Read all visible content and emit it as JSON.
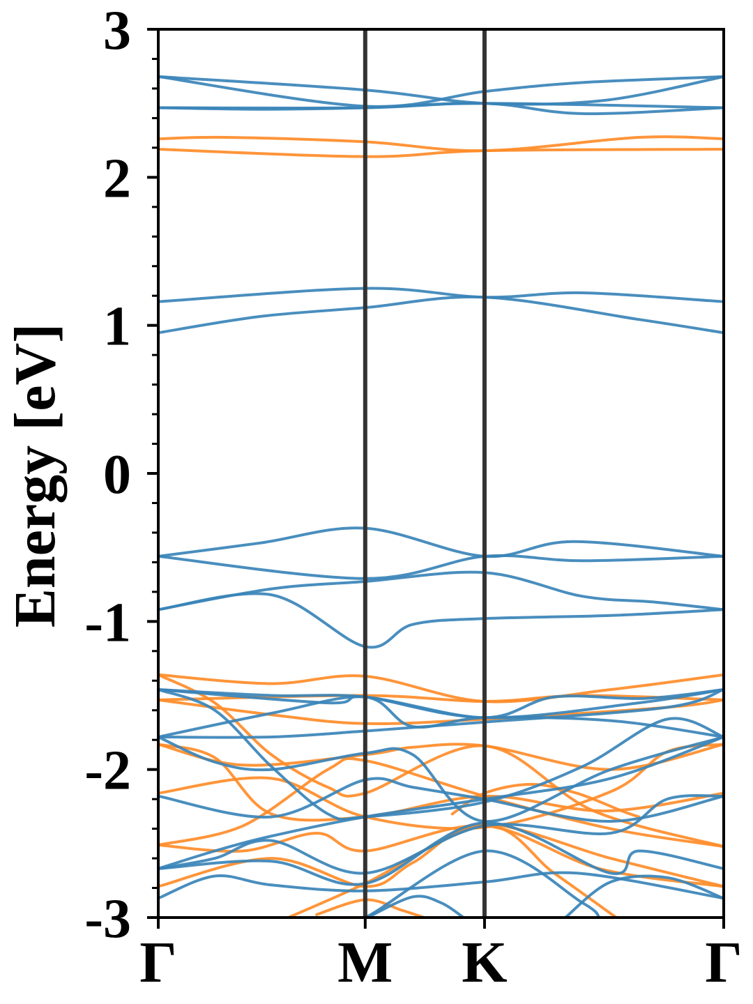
{
  "chart_data": {
    "type": "line",
    "title": "",
    "xlabel": "",
    "ylabel": "Energy [eV]",
    "ylim": [
      -3,
      3
    ],
    "xlim": [
      0,
      1
    ],
    "y_ticks": [
      "-3",
      "-2",
      "-1",
      "0",
      "1",
      "2",
      "3"
    ],
    "y_tick_values": [
      -3,
      -2,
      -1,
      0,
      1,
      2,
      3
    ],
    "y_minor_step": 0.2,
    "high_symmetry_points": [
      {
        "label": "Γ",
        "x": 0.0
      },
      {
        "label": "M",
        "x": 0.366
      },
      {
        "label": "K",
        "x": 0.577
      },
      {
        "label": "Γ",
        "x": 1.0
      }
    ],
    "grid": false,
    "legend": "none",
    "colors": {
      "spin_blue": "#3a84b8",
      "spin_orange": "#ff8c29",
      "kpath_line": "#333333"
    },
    "series": [
      {
        "color": "blue",
        "x": [
          0,
          0.366,
          0.577,
          0.79,
          1
        ],
        "y": [
          2.68,
          2.59,
          2.5,
          2.52,
          2.68
        ]
      },
      {
        "color": "blue",
        "x": [
          0,
          0.366,
          0.577,
          0.75,
          1
        ],
        "y": [
          2.68,
          2.48,
          2.58,
          2.64,
          2.68
        ]
      },
      {
        "color": "blue",
        "x": [
          0,
          0.366,
          0.577,
          1
        ],
        "y": [
          2.47,
          2.47,
          2.5,
          2.47
        ]
      },
      {
        "color": "blue",
        "x": [
          0,
          0.18,
          0.366,
          0.577,
          0.75,
          1
        ],
        "y": [
          2.47,
          2.46,
          2.47,
          2.5,
          2.43,
          2.47
        ]
      },
      {
        "color": "orange",
        "x": [
          0,
          0.12,
          0.366,
          0.577,
          0.85,
          1
        ],
        "y": [
          2.26,
          2.27,
          2.24,
          2.18,
          2.27,
          2.26
        ]
      },
      {
        "color": "orange",
        "x": [
          0,
          0.366,
          0.577,
          1
        ],
        "y": [
          2.19,
          2.14,
          2.18,
          2.19
        ]
      },
      {
        "color": "blue",
        "x": [
          0,
          0.366,
          0.577,
          0.75,
          1
        ],
        "y": [
          1.16,
          1.25,
          1.19,
          1.22,
          1.16
        ]
      },
      {
        "color": "blue",
        "x": [
          0,
          0.18,
          0.366,
          0.577,
          0.85,
          1
        ],
        "y": [
          0.95,
          1.06,
          1.12,
          1.19,
          1.04,
          0.95
        ]
      },
      {
        "color": "blue",
        "x": [
          0,
          0.18,
          0.366,
          0.577,
          0.735,
          1
        ],
        "y": [
          -0.56,
          -0.47,
          -0.37,
          -0.56,
          -0.46,
          -0.56
        ]
      },
      {
        "color": "blue",
        "x": [
          0,
          0.366,
          0.577,
          0.75,
          1
        ],
        "y": [
          -0.56,
          -0.71,
          -0.56,
          -0.59,
          -0.56
        ]
      },
      {
        "color": "blue",
        "x": [
          0,
          0.2,
          0.366,
          0.577,
          0.75,
          0.88,
          1
        ],
        "y": [
          -0.92,
          -0.78,
          -0.73,
          -0.67,
          -0.83,
          -0.87,
          -0.92
        ]
      },
      {
        "color": "blue",
        "x": [
          0,
          0.2,
          0.366,
          0.45,
          0.577,
          0.8,
          1
        ],
        "y": [
          -0.92,
          -0.82,
          -1.17,
          -1.02,
          -0.98,
          -0.96,
          -0.92
        ]
      },
      {
        "color": "orange",
        "x": [
          0,
          0.2,
          0.366,
          0.577,
          0.8,
          1
        ],
        "y": [
          -1.36,
          -1.42,
          -1.37,
          -1.54,
          -1.46,
          -1.36
        ]
      },
      {
        "color": "orange",
        "x": [
          0,
          0.366,
          0.577,
          0.75,
          1
        ],
        "y": [
          -1.53,
          -1.5,
          -1.54,
          -1.5,
          -1.53
        ]
      },
      {
        "color": "orange",
        "x": [
          0,
          0.2,
          0.366,
          0.577,
          0.9,
          1
        ],
        "y": [
          -1.53,
          -1.63,
          -1.69,
          -1.66,
          -1.58,
          -1.53
        ]
      },
      {
        "color": "orange",
        "x": [
          0,
          0.1,
          0.2,
          0.3,
          0.366,
          0.577,
          0.77,
          1
        ],
        "y": [
          -1.36,
          -1.55,
          -1.9,
          -2.12,
          -2.16,
          -1.84,
          -2.28,
          -2.52
        ]
      },
      {
        "color": "orange",
        "x": [
          0,
          0.15,
          0.366,
          0.45,
          0.577,
          0.8,
          1
        ],
        "y": [
          -1.83,
          -1.97,
          -1.9,
          -1.85,
          -1.84,
          -2.0,
          -1.83
        ]
      },
      {
        "color": "orange",
        "x": [
          0,
          0.2,
          0.366,
          0.577,
          0.8,
          0.9,
          1
        ],
        "y": [
          -2.16,
          -2.06,
          -2.32,
          -2.39,
          -2.15,
          -1.88,
          -1.83
        ]
      },
      {
        "color": "orange",
        "x": [
          0,
          0.1,
          0.2,
          0.366,
          0.577,
          0.79,
          1
        ],
        "y": [
          -1.83,
          -1.92,
          -2.3,
          -2.32,
          -2.18,
          -2.28,
          -2.16
        ]
      },
      {
        "color": "orange",
        "x": [
          0,
          0.15,
          0.3,
          0.366,
          0.577,
          0.8,
          1
        ],
        "y": [
          -2.51,
          -2.38,
          -2.0,
          -1.94,
          -2.18,
          -2.4,
          -2.52
        ]
      },
      {
        "color": "orange",
        "x": [
          0,
          0.15,
          0.28,
          0.366,
          0.577,
          0.78,
          1
        ],
        "y": [
          -2.51,
          -2.55,
          -2.43,
          -2.55,
          -2.38,
          -2.67,
          -2.79
        ]
      },
      {
        "color": "orange",
        "x": [
          0,
          0.2,
          0.366,
          0.45,
          0.577,
          0.8,
          1
        ],
        "y": [
          -2.79,
          -2.6,
          -2.79,
          -2.63,
          -2.37,
          -2.6,
          -2.79
        ]
      },
      {
        "color": "orange",
        "x": [
          0.23,
          0.366,
          0.577,
          0.7,
          0.81
        ],
        "y": [
          -3.0,
          -2.77,
          -2.38,
          -2.7,
          -3.0
        ]
      },
      {
        "color": "orange",
        "x": [
          0.28,
          0.366,
          0.43,
          0.47
        ],
        "y": [
          -2.98,
          -2.88,
          -2.95,
          -3.0
        ]
      },
      {
        "color": "orange",
        "x": [
          0.52,
          0.577,
          0.66,
          0.74,
          0.82,
          0.85
        ],
        "y": [
          -2.3,
          -2.16,
          -2.1,
          -2.16,
          -2.28,
          -2.32
        ]
      },
      {
        "color": "blue",
        "x": [
          0,
          0.3,
          0.366,
          0.577,
          0.85,
          1
        ],
        "y": [
          -1.46,
          -1.55,
          -1.51,
          -1.65,
          -1.55,
          -1.46
        ]
      },
      {
        "color": "blue",
        "x": [
          0,
          0.2,
          0.366,
          0.577,
          0.7,
          0.86,
          1
        ],
        "y": [
          -1.46,
          -1.5,
          -1.51,
          -1.65,
          -1.51,
          -1.52,
          -1.46
        ]
      },
      {
        "color": "blue",
        "x": [
          0,
          0.2,
          0.366,
          0.45,
          0.577,
          0.8,
          1
        ],
        "y": [
          -1.78,
          -1.62,
          -1.51,
          -1.71,
          -1.65,
          -1.67,
          -1.78
        ]
      },
      {
        "color": "blue",
        "x": [
          0,
          0.2,
          0.366,
          0.577,
          0.9,
          1
        ],
        "y": [
          -1.78,
          -1.78,
          -1.74,
          -1.68,
          -1.58,
          -1.46
        ]
      },
      {
        "color": "blue",
        "x": [
          0,
          0.1,
          0.2,
          0.3,
          0.366,
          0.577,
          0.75,
          0.9,
          1
        ],
        "y": [
          -1.46,
          -1.6,
          -1.98,
          -2.3,
          -2.32,
          -2.22,
          -1.98,
          -1.66,
          -1.78
        ]
      },
      {
        "color": "blue",
        "x": [
          0,
          0.1,
          0.2,
          0.366,
          0.45,
          0.577,
          0.8,
          1
        ],
        "y": [
          -1.78,
          -1.95,
          -2.0,
          -1.89,
          -1.9,
          -2.35,
          -2.0,
          -1.78
        ]
      },
      {
        "color": "blue",
        "x": [
          0,
          0.2,
          0.366,
          0.45,
          0.577,
          0.8,
          1
        ],
        "y": [
          -2.18,
          -2.32,
          -2.07,
          -2.12,
          -2.2,
          -2.35,
          -2.18
        ]
      },
      {
        "color": "blue",
        "x": [
          0,
          0.1,
          0.2,
          0.366,
          0.577,
          0.8,
          1
        ],
        "y": [
          -2.67,
          -2.55,
          -2.45,
          -2.32,
          -2.2,
          -2.06,
          -1.78
        ]
      },
      {
        "color": "blue",
        "x": [
          0,
          0.1,
          0.2,
          0.366,
          0.577,
          0.8,
          0.9,
          1
        ],
        "y": [
          -2.67,
          -2.6,
          -2.48,
          -2.7,
          -2.38,
          -2.43,
          -2.2,
          -2.18
        ]
      },
      {
        "color": "blue",
        "x": [
          0,
          0.1,
          0.2,
          0.366,
          0.577,
          0.74,
          1
        ],
        "y": [
          -2.87,
          -2.72,
          -2.78,
          -2.82,
          -2.76,
          -2.7,
          -2.87
        ]
      },
      {
        "color": "blue",
        "x": [
          0,
          0.2,
          0.366,
          0.577,
          0.8,
          0.85,
          1
        ],
        "y": [
          -2.67,
          -2.62,
          -2.77,
          -2.36,
          -2.7,
          -2.55,
          -2.67
        ]
      },
      {
        "color": "blue",
        "x": [
          0.32,
          0.366,
          0.577,
          0.75,
          0.78
        ],
        "y": [
          -3.0,
          -3.0,
          -2.55,
          -2.9,
          -3.0
        ]
      },
      {
        "color": "blue",
        "x": [
          0.37,
          0.45,
          0.5,
          0.54
        ],
        "y": [
          -3.0,
          -2.86,
          -2.9,
          -3.0
        ]
      },
      {
        "color": "blue",
        "x": [
          0.72,
          0.8,
          0.9,
          1
        ],
        "y": [
          -3.0,
          -2.76,
          -2.73,
          -2.87
        ]
      }
    ]
  }
}
